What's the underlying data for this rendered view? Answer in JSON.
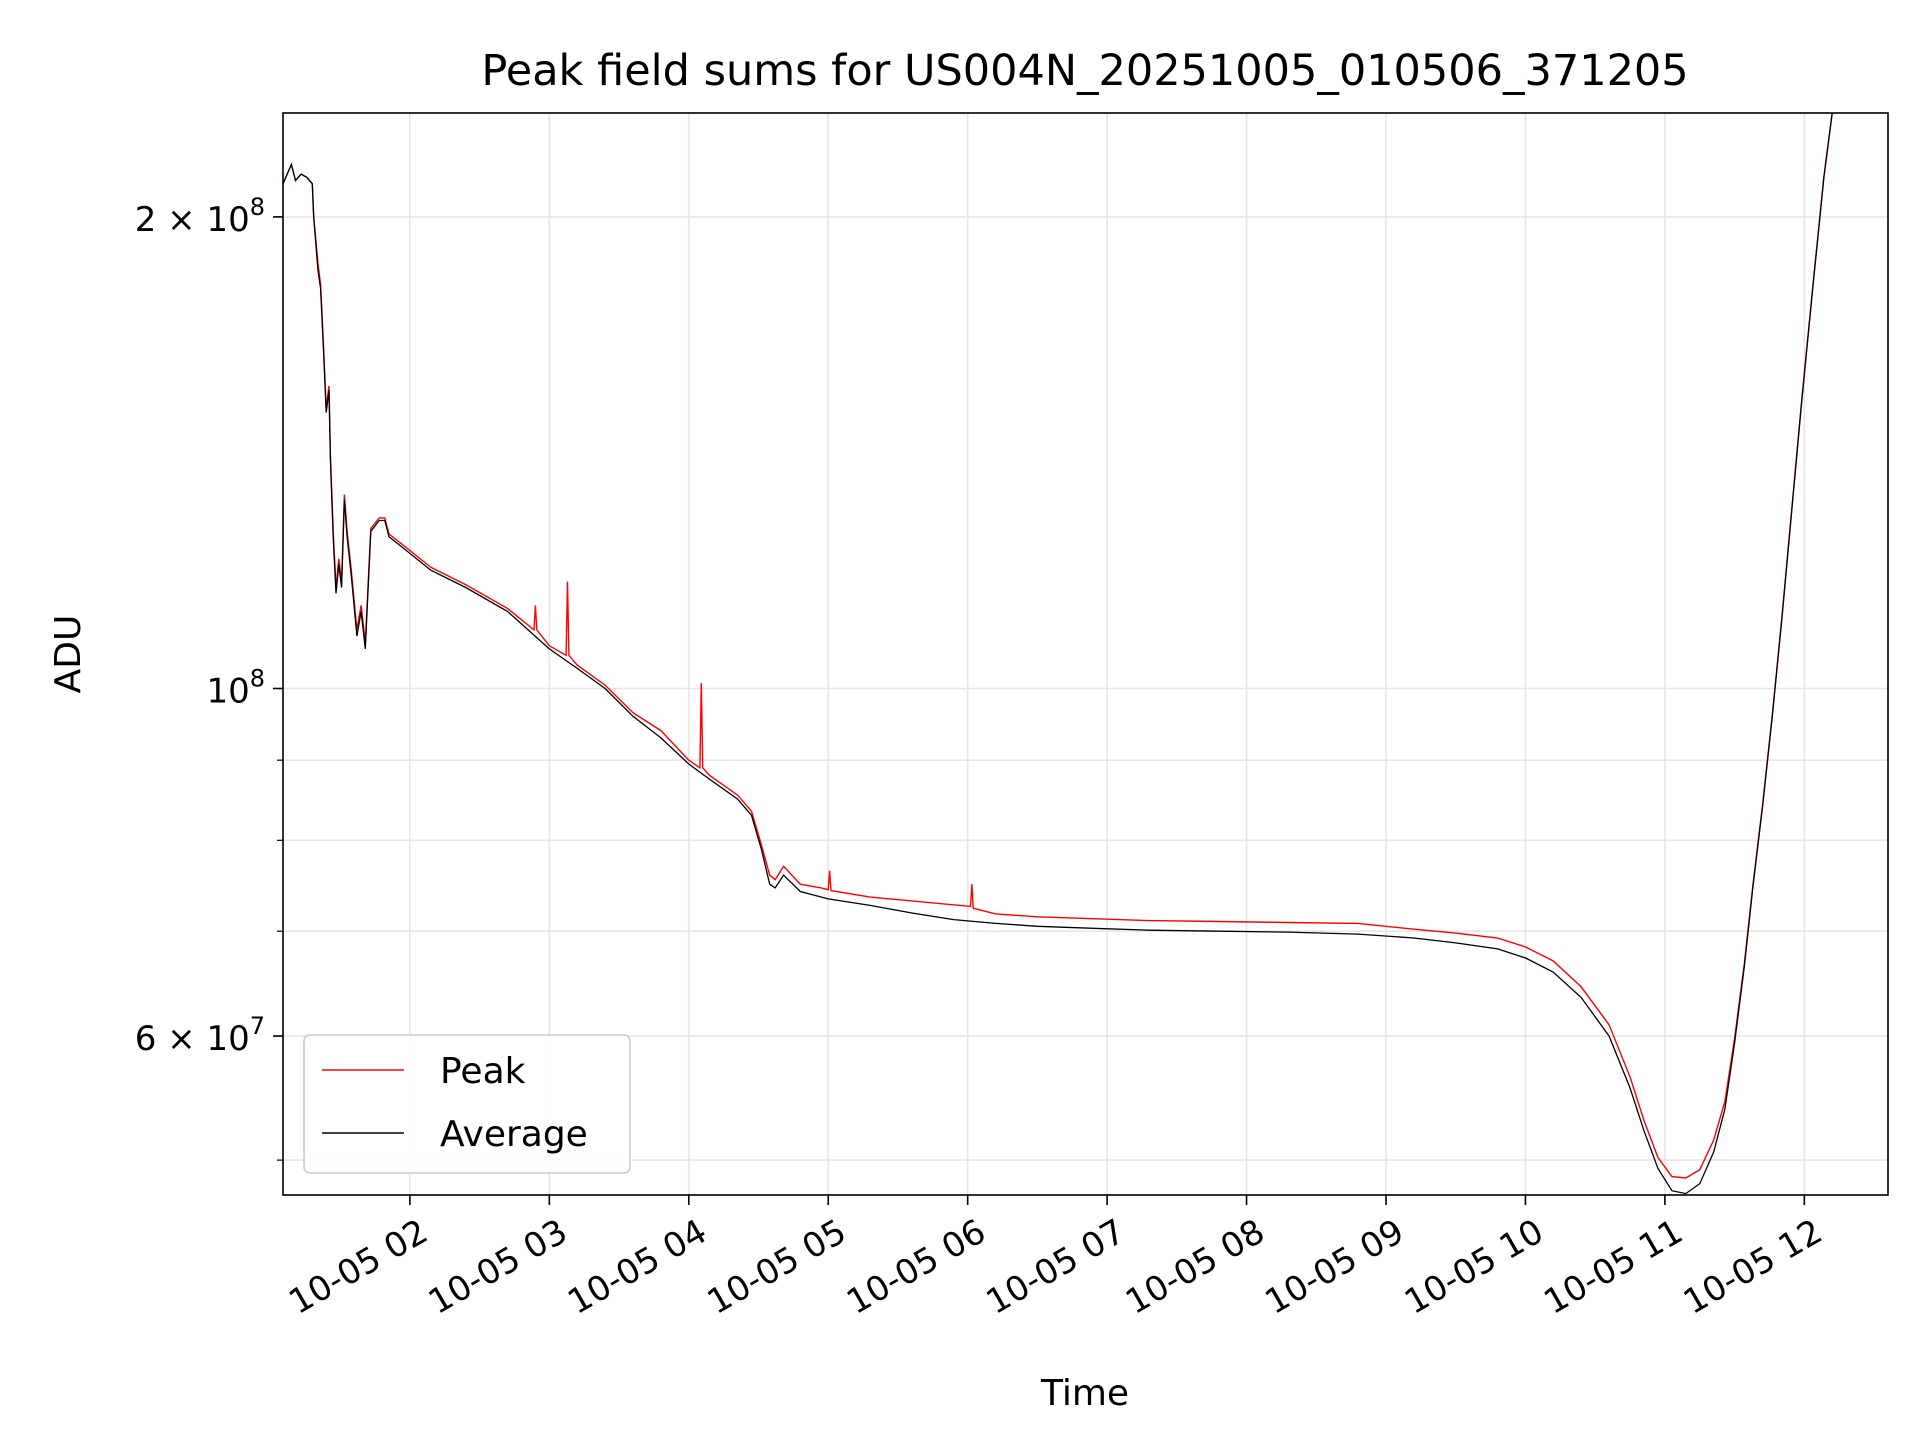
{
  "chart_data": {
    "type": "line",
    "title": "Peak field sums for US004N_20251005_010506_371205",
    "xlabel": "Time",
    "ylabel": "ADU",
    "yscale": "log",
    "x_unit": "hours since 10-05 00:00",
    "xlim": [
      1.09,
      12.6
    ],
    "ylim": [
      47500000,
      233000000
    ],
    "grid": true,
    "legend_position": "lower-left",
    "colors": {
      "peak": "#ff0000",
      "average": "#000000",
      "grid": "#e6e6e6",
      "axis": "#000000"
    },
    "x_ticks": [
      {
        "value": 2,
        "label": "10-05 02"
      },
      {
        "value": 3,
        "label": "10-05 03"
      },
      {
        "value": 4,
        "label": "10-05 04"
      },
      {
        "value": 5,
        "label": "10-05 05"
      },
      {
        "value": 6,
        "label": "10-05 06"
      },
      {
        "value": 7,
        "label": "10-05 07"
      },
      {
        "value": 8,
        "label": "10-05 08"
      },
      {
        "value": 9,
        "label": "10-05 09"
      },
      {
        "value": 10,
        "label": "10-05 10"
      },
      {
        "value": 11,
        "label": "10-05 11"
      },
      {
        "value": 12,
        "label": "10-05 12"
      }
    ],
    "y_major_ticks": [
      {
        "value": 60000000,
        "mantissa": "6",
        "exp": "7"
      },
      {
        "value": 100000000,
        "mantissa": "",
        "exp": "8"
      },
      {
        "value": 200000000,
        "mantissa": "2",
        "exp": "8"
      }
    ],
    "y_minor_ticks": [
      50000000,
      70000000,
      80000000,
      90000000
    ],
    "series": [
      {
        "name": "Average",
        "points": [
          [
            1.09,
            210000000
          ],
          [
            1.12,
            213000000
          ],
          [
            1.15,
            216000000
          ],
          [
            1.18,
            211000000
          ],
          [
            1.22,
            213000000
          ],
          [
            1.26,
            212000000
          ],
          [
            1.3,
            210000000
          ],
          [
            1.31,
            200000000
          ],
          [
            1.34,
            185000000
          ],
          [
            1.36,
            180000000
          ],
          [
            1.38,
            165000000
          ],
          [
            1.4,
            150000000
          ],
          [
            1.42,
            155000000
          ],
          [
            1.43,
            140000000
          ],
          [
            1.45,
            125000000
          ],
          [
            1.47,
            115000000
          ],
          [
            1.49,
            120000000
          ],
          [
            1.51,
            116000000
          ],
          [
            1.53,
            132000000
          ],
          [
            1.55,
            125000000
          ],
          [
            1.58,
            118000000
          ],
          [
            1.62,
            108000000
          ],
          [
            1.65,
            112000000
          ],
          [
            1.68,
            106000000
          ],
          [
            1.72,
            126000000
          ],
          [
            1.78,
            128000000
          ],
          [
            1.82,
            128000000
          ],
          [
            1.85,
            125000000
          ],
          [
            1.95,
            123000000
          ],
          [
            2.15,
            119000000
          ],
          [
            2.4,
            116000000
          ],
          [
            2.7,
            112000000
          ],
          [
            3.0,
            106000000
          ],
          [
            3.2,
            103000000
          ],
          [
            3.4,
            100000000
          ],
          [
            3.6,
            96000000
          ],
          [
            3.8,
            93000000
          ],
          [
            4.0,
            89500000
          ],
          [
            4.15,
            87500000
          ],
          [
            4.35,
            85000000
          ],
          [
            4.45,
            83000000
          ],
          [
            4.52,
            79000000
          ],
          [
            4.58,
            75000000
          ],
          [
            4.62,
            74600000
          ],
          [
            4.68,
            76000000
          ],
          [
            4.8,
            74200000
          ],
          [
            5.0,
            73400000
          ],
          [
            5.3,
            72700000
          ],
          [
            5.6,
            71900000
          ],
          [
            5.9,
            71200000
          ],
          [
            6.2,
            70800000
          ],
          [
            6.5,
            70500000
          ],
          [
            6.9,
            70300000
          ],
          [
            7.3,
            70100000
          ],
          [
            7.8,
            70000000
          ],
          [
            8.3,
            69900000
          ],
          [
            8.8,
            69700000
          ],
          [
            9.2,
            69300000
          ],
          [
            9.5,
            68800000
          ],
          [
            9.8,
            68200000
          ],
          [
            10.0,
            67300000
          ],
          [
            10.2,
            65900000
          ],
          [
            10.4,
            63500000
          ],
          [
            10.6,
            60000000
          ],
          [
            10.75,
            55600000
          ],
          [
            10.85,
            52200000
          ],
          [
            10.95,
            49400000
          ],
          [
            11.05,
            47800000
          ],
          [
            11.15,
            47600000
          ],
          [
            11.25,
            48300000
          ],
          [
            11.35,
            50600000
          ],
          [
            11.43,
            53900000
          ],
          [
            11.5,
            59400000
          ],
          [
            11.57,
            66500000
          ],
          [
            11.63,
            74500000
          ],
          [
            11.7,
            84000000
          ],
          [
            11.77,
            96000000
          ],
          [
            11.84,
            111000000
          ],
          [
            11.91,
            130000000
          ],
          [
            11.98,
            152000000
          ],
          [
            12.06,
            180000000
          ],
          [
            12.14,
            212000000
          ],
          [
            12.2,
            233000000
          ]
        ]
      },
      {
        "name": "Peak",
        "points": [
          [
            1.09,
            210000000
          ],
          [
            1.12,
            213000000
          ],
          [
            1.15,
            216000000
          ],
          [
            1.18,
            211000000
          ],
          [
            1.22,
            213000000
          ],
          [
            1.26,
            212000000
          ],
          [
            1.3,
            210000000
          ],
          [
            1.31,
            200000000
          ],
          [
            1.34,
            187000000
          ],
          [
            1.36,
            181000000
          ],
          [
            1.38,
            166000000
          ],
          [
            1.4,
            151000000
          ],
          [
            1.42,
            156000000
          ],
          [
            1.43,
            141000000
          ],
          [
            1.45,
            126000000
          ],
          [
            1.47,
            116000000
          ],
          [
            1.49,
            121000000
          ],
          [
            1.51,
            117000000
          ],
          [
            1.53,
            133000000
          ],
          [
            1.55,
            126000000
          ],
          [
            1.58,
            119000000
          ],
          [
            1.62,
            109000000
          ],
          [
            1.65,
            113000000
          ],
          [
            1.68,
            107000000
          ],
          [
            1.72,
            126500000
          ],
          [
            1.78,
            128500000
          ],
          [
            1.82,
            128500000
          ],
          [
            1.85,
            125500000
          ],
          [
            1.95,
            123500000
          ],
          [
            2.15,
            119500000
          ],
          [
            2.4,
            116500000
          ],
          [
            2.7,
            112500000
          ],
          [
            2.89,
            109000000
          ],
          [
            2.9,
            113000000
          ],
          [
            2.91,
            109000000
          ],
          [
            3.0,
            106500000
          ],
          [
            3.12,
            105000000
          ],
          [
            3.13,
            117000000
          ],
          [
            3.14,
            105000000
          ],
          [
            3.2,
            103500000
          ],
          [
            3.4,
            100500000
          ],
          [
            3.6,
            96500000
          ],
          [
            3.8,
            94000000
          ],
          [
            4.0,
            90000000
          ],
          [
            4.08,
            89000000
          ],
          [
            4.09,
            100800000
          ],
          [
            4.1,
            89000000
          ],
          [
            4.15,
            88000000
          ],
          [
            4.35,
            85500000
          ],
          [
            4.45,
            83500000
          ],
          [
            4.52,
            79500000
          ],
          [
            4.58,
            76000000
          ],
          [
            4.62,
            75500000
          ],
          [
            4.68,
            77000000
          ],
          [
            4.8,
            75000000
          ],
          [
            4.95,
            74600000
          ],
          [
            5.0,
            74400000
          ],
          [
            5.01,
            76500000
          ],
          [
            5.02,
            74300000
          ],
          [
            5.3,
            73600000
          ],
          [
            6.02,
            72600000
          ],
          [
            6.03,
            75000000
          ],
          [
            6.04,
            72400000
          ],
          [
            6.2,
            71800000
          ],
          [
            6.5,
            71500000
          ],
          [
            6.9,
            71300000
          ],
          [
            7.3,
            71100000
          ],
          [
            7.8,
            71000000
          ],
          [
            8.3,
            70900000
          ],
          [
            8.8,
            70800000
          ],
          [
            9.2,
            70200000
          ],
          [
            9.5,
            69800000
          ],
          [
            9.8,
            69300000
          ],
          [
            10.0,
            68400000
          ],
          [
            10.2,
            67000000
          ],
          [
            10.4,
            64500000
          ],
          [
            10.6,
            61000000
          ],
          [
            10.75,
            56500000
          ],
          [
            10.85,
            53000000
          ],
          [
            10.95,
            50200000
          ],
          [
            11.05,
            48800000
          ],
          [
            11.15,
            48700000
          ],
          [
            11.25,
            49300000
          ],
          [
            11.35,
            51500000
          ],
          [
            11.43,
            54500000
          ],
          [
            11.5,
            59800000
          ],
          [
            11.57,
            66800000
          ],
          [
            11.63,
            74700000
          ],
          [
            11.7,
            84200000
          ],
          [
            11.77,
            96200000
          ],
          [
            11.84,
            111200000
          ],
          [
            11.91,
            130200000
          ],
          [
            11.98,
            152200000
          ],
          [
            12.06,
            180200000
          ],
          [
            12.14,
            212200000
          ],
          [
            12.2,
            233000000
          ]
        ]
      }
    ],
    "legend": [
      {
        "key": "peak",
        "label": "Peak"
      },
      {
        "key": "average",
        "label": "Average"
      }
    ]
  }
}
